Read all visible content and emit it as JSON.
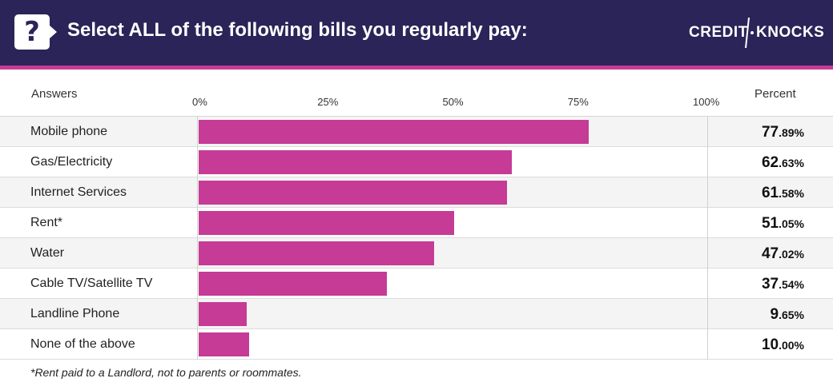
{
  "header": {
    "title": "Select ALL of the following bills you regularly pay:",
    "icon": "question-icon",
    "logo_left": "CREDIT",
    "logo_right": "KNOCKS"
  },
  "columns": {
    "answers": "Answers",
    "percent": "Percent"
  },
  "colors": {
    "header_bg": "#2a2458",
    "accent": "#c53b96"
  },
  "chart_data": {
    "type": "bar",
    "orientation": "horizontal",
    "title": "Select ALL of the following bills you regularly pay:",
    "categories": [
      "Mobile phone",
      "Gas/Electricity",
      "Internet Services",
      "Rent*",
      "Water",
      "Cable TV/Satellite TV",
      "Landline Phone",
      "None of the above"
    ],
    "values": [
      77.89,
      62.63,
      61.58,
      51.05,
      47.02,
      37.54,
      9.65,
      10.0
    ],
    "value_labels": [
      {
        "int": "77",
        "dec": ".89%"
      },
      {
        "int": "62",
        "dec": ".63%"
      },
      {
        "int": "61",
        "dec": ".58%"
      },
      {
        "int": "51",
        "dec": ".05%"
      },
      {
        "int": "47",
        "dec": ".02%"
      },
      {
        "int": "37",
        "dec": ".54%"
      },
      {
        "int": "9",
        "dec": ".65%"
      },
      {
        "int": "10",
        "dec": ".00%"
      }
    ],
    "xlim": [
      0,
      100
    ],
    "ticks": [
      "0%",
      "25%",
      "50%",
      "75%",
      "100%"
    ],
    "tick_values": [
      0,
      25,
      50,
      75,
      100
    ],
    "legend": "none",
    "grid": false
  },
  "footnote": "*Rent paid to a Landlord, not to parents or roommates."
}
